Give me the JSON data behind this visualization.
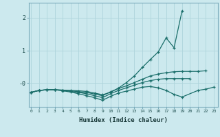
{
  "xlabel": "Humidex (Indice chaleur)",
  "background_color": "#cce9ee",
  "grid_color": "#aed4db",
  "line_color": "#1a6e6a",
  "series": [
    {
      "x": [
        0,
        1,
        2,
        3,
        4,
        5,
        6,
        7,
        8,
        9,
        10,
        11,
        12,
        13,
        14,
        15,
        16,
        17,
        18,
        19,
        20
      ],
      "y": [
        -0.28,
        -0.22,
        -0.2,
        -0.2,
        -0.21,
        -0.22,
        -0.23,
        -0.25,
        -0.3,
        -0.35,
        -0.28,
        -0.15,
        0.02,
        0.22,
        0.48,
        0.72,
        0.95,
        1.38,
        1.08,
        2.2,
        null
      ]
    },
    {
      "x": [
        0,
        1,
        2,
        3,
        4,
        5,
        6,
        7,
        8,
        9,
        10,
        11,
        12,
        13,
        14,
        15,
        16,
        17,
        18,
        19,
        20,
        21,
        22,
        23
      ],
      "y": [
        -0.28,
        -0.22,
        -0.2,
        -0.2,
        -0.21,
        -0.23,
        -0.26,
        -0.28,
        -0.33,
        -0.38,
        -0.26,
        -0.16,
        -0.08,
        0.02,
        0.12,
        0.22,
        0.28,
        0.32,
        0.35,
        0.36,
        0.36,
        0.36,
        0.38,
        null
      ]
    },
    {
      "x": [
        0,
        1,
        2,
        3,
        4,
        5,
        6,
        7,
        8,
        9,
        10,
        11,
        12,
        13,
        14,
        15,
        16,
        17,
        18,
        19,
        20
      ],
      "y": [
        -0.28,
        -0.22,
        -0.2,
        -0.2,
        -0.22,
        -0.25,
        -0.28,
        -0.32,
        -0.38,
        -0.44,
        -0.32,
        -0.22,
        -0.14,
        -0.06,
        0.02,
        0.08,
        0.12,
        0.14,
        0.14,
        0.14,
        0.14
      ]
    },
    {
      "x": [
        0,
        1,
        2,
        3,
        4,
        5,
        6,
        7,
        8,
        9,
        10,
        11,
        12,
        13,
        14,
        15,
        16,
        17,
        18,
        19,
        21,
        22,
        23
      ],
      "y": [
        -0.28,
        -0.22,
        -0.2,
        -0.2,
        -0.23,
        -0.27,
        -0.32,
        -0.38,
        -0.44,
        -0.52,
        -0.4,
        -0.3,
        -0.24,
        -0.18,
        -0.12,
        -0.1,
        -0.14,
        -0.22,
        -0.34,
        -0.42,
        -0.22,
        -0.18,
        -0.12
      ]
    }
  ],
  "xlim": [
    -0.3,
    23.5
  ],
  "ylim": [
    -0.72,
    2.45
  ],
  "yticks": [
    0.0,
    1.0,
    2.0
  ],
  "ytick_labels": [
    "-0",
    "1",
    "2"
  ],
  "xticks": [
    0,
    1,
    2,
    3,
    4,
    5,
    6,
    7,
    8,
    9,
    10,
    11,
    12,
    13,
    14,
    15,
    16,
    17,
    18,
    19,
    20,
    21,
    22,
    23
  ]
}
